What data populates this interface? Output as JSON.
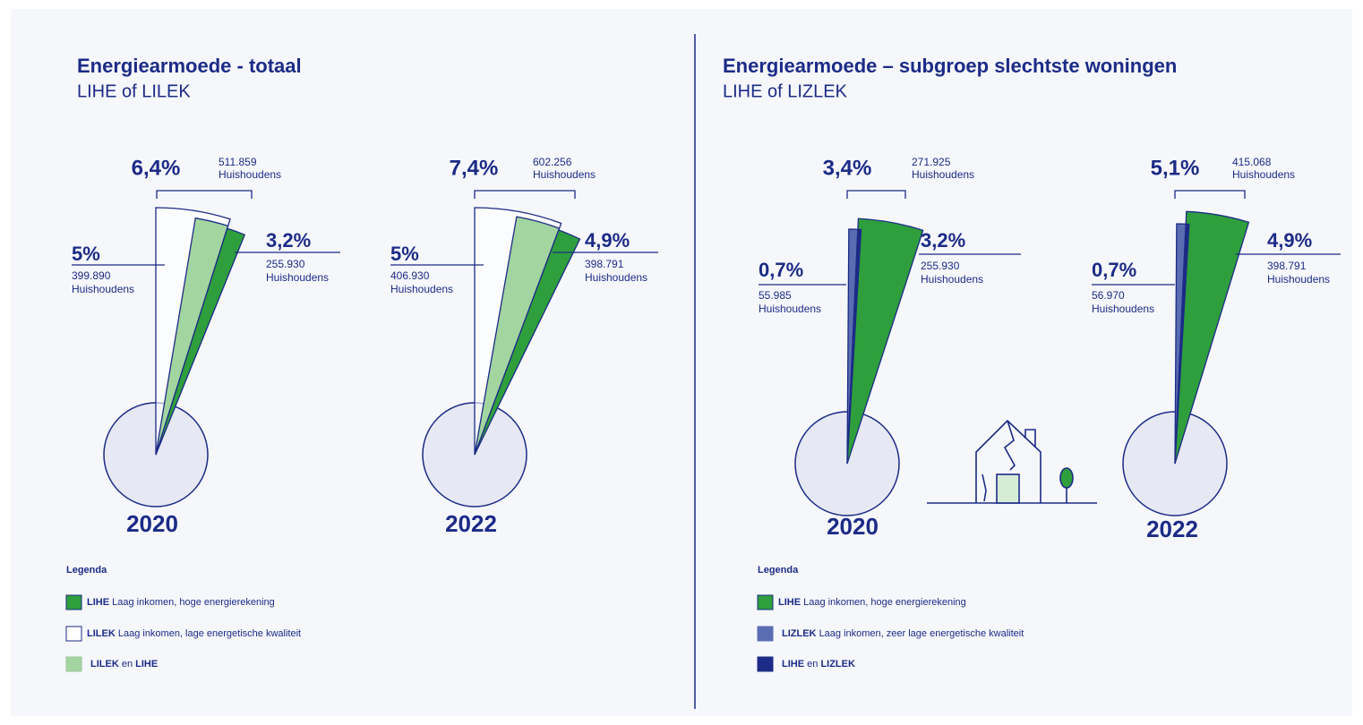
{
  "panels": [
    {
      "title": "Energiearmoede - totaal",
      "subtitle": "LIHE of LILEK",
      "years": [
        {
          "year": "2020",
          "total": {
            "pct": "6,4%",
            "count": "511.859",
            "unit": "Huishoudens"
          },
          "left": {
            "pct": "5%",
            "count": "399.890",
            "unit": "Huishoudens"
          },
          "right": {
            "pct": "3,2%",
            "count": "255.930",
            "unit": "Huishoudens"
          }
        },
        {
          "year": "2022",
          "total": {
            "pct": "7,4%",
            "count": "602.256",
            "unit": "Huishoudens"
          },
          "left": {
            "pct": "5%",
            "count": "406.930",
            "unit": "Huishoudens"
          },
          "right": {
            "pct": "4,9%",
            "count": "398.791",
            "unit": "Huishoudens"
          }
        }
      ],
      "legend": {
        "heading": "Legenda",
        "items": [
          {
            "key": "LIHE",
            "text": "Laag inkomen, hoge energierekening"
          },
          {
            "key": "LILEK",
            "text": "Laag inkomen, lage energetische kwaliteit"
          },
          {
            "key": "LILEK",
            "text": "en",
            "key2": "LIHE"
          }
        ]
      }
    },
    {
      "title": "Energiearmoede – subgroep slechtste woningen",
      "subtitle": "LIHE of LIZLEK",
      "years": [
        {
          "year": "2020",
          "total": {
            "pct": "3,4%",
            "count": "271.925",
            "unit": "Huishoudens"
          },
          "left": {
            "pct": "0,7%",
            "count": "55.985",
            "unit": "Huishoudens"
          },
          "right": {
            "pct": "3,2%",
            "count": "255.930",
            "unit": "Huishoudens"
          }
        },
        {
          "year": "2022",
          "total": {
            "pct": "5,1%",
            "count": "415.068",
            "unit": "Huishoudens"
          },
          "left": {
            "pct": "0,7%",
            "count": "56.970",
            "unit": "Huishoudens"
          },
          "right": {
            "pct": "4,9%",
            "count": "398.791",
            "unit": "Huishoudens"
          }
        }
      ],
      "legend": {
        "heading": "Legenda",
        "items": [
          {
            "key": "LIHE",
            "text": "Laag inkomen, hoge energierekening"
          },
          {
            "key": "LIZLEK",
            "text": "Laag inkomen, zeer lage energetische kwaliteit"
          },
          {
            "key": "LIHE",
            "text": "en",
            "key2": "LIZLEK"
          }
        ]
      }
    }
  ]
}
